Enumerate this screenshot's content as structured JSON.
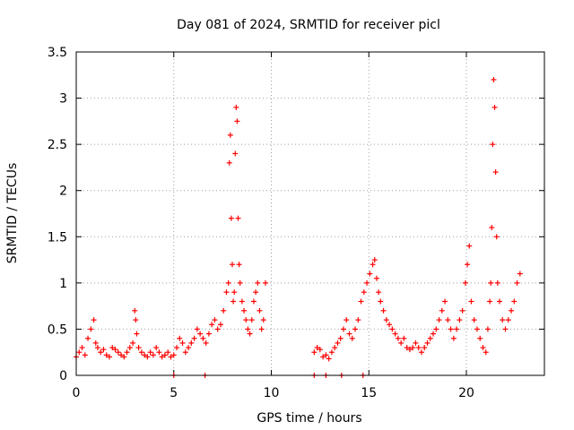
{
  "chart_data": {
    "type": "scatter",
    "title": "Day 081 of 2024, SRMTID for receiver picl",
    "xlabel": "GPS time / hours",
    "ylabel": "SRMTID / TECUs",
    "xlim": [
      0,
      24
    ],
    "ylim": [
      0,
      3.5
    ],
    "x_ticks": [
      0,
      5,
      10,
      15,
      20
    ],
    "x_tick_labels": [
      "0",
      "5",
      "10",
      "15",
      "20"
    ],
    "y_ticks": [
      0,
      0.5,
      1,
      1.5,
      2,
      2.5,
      3,
      3.5
    ],
    "y_tick_labels": [
      "0",
      "0.5",
      "1",
      "1.5",
      "2",
      "2.5",
      "3",
      "3.5"
    ],
    "grid": true,
    "legend": "none",
    "marker": "+",
    "color": "#ff0000",
    "series": [
      {
        "name": "SRMTID",
        "x": [
          0.0,
          0.15,
          0.3,
          0.45,
          0.6,
          0.75,
          0.9,
          1.0,
          1.1,
          1.25,
          1.4,
          1.55,
          1.7,
          1.85,
          2.0,
          2.15,
          2.3,
          2.45,
          2.6,
          2.75,
          2.9,
          3.0,
          3.05,
          3.1,
          3.2,
          3.35,
          3.5,
          3.65,
          3.8,
          3.95,
          4.1,
          4.25,
          4.4,
          4.55,
          4.7,
          4.85,
          5.0,
          5.15,
          5.3,
          5.45,
          5.6,
          5.75,
          5.9,
          6.05,
          6.2,
          6.35,
          6.5,
          6.65,
          6.8,
          6.95,
          7.1,
          7.25,
          7.4,
          7.55,
          7.7,
          7.8,
          7.85,
          7.9,
          7.95,
          8.0,
          8.05,
          8.1,
          8.15,
          8.2,
          8.25,
          8.3,
          8.35,
          8.4,
          8.5,
          8.6,
          8.7,
          8.8,
          8.9,
          9.0,
          9.1,
          9.2,
          9.3,
          9.4,
          9.5,
          9.6,
          9.7,
          12.2,
          12.35,
          12.5,
          12.65,
          12.8,
          12.95,
          13.1,
          13.25,
          13.4,
          13.55,
          13.7,
          13.85,
          14.0,
          14.15,
          14.3,
          14.45,
          14.6,
          14.75,
          14.9,
          15.05,
          15.2,
          15.3,
          15.4,
          15.5,
          15.6,
          15.75,
          15.9,
          16.05,
          16.2,
          16.35,
          16.5,
          16.65,
          16.8,
          16.95,
          17.1,
          17.25,
          17.4,
          17.55,
          17.7,
          17.85,
          18.0,
          18.15,
          18.3,
          18.45,
          18.6,
          18.75,
          18.9,
          19.05,
          19.2,
          19.35,
          19.5,
          19.65,
          19.8,
          19.95,
          20.05,
          20.15,
          20.25,
          20.4,
          20.55,
          20.7,
          20.85,
          21.0,
          21.1,
          21.2,
          21.25,
          21.3,
          21.35,
          21.4,
          21.45,
          21.5,
          21.55,
          21.6,
          21.7,
          21.85,
          22.0,
          22.15,
          22.3,
          22.45,
          22.6,
          22.75,
          5.0,
          6.6,
          12.2,
          12.8,
          13.6,
          14.7
        ],
        "y": [
          0.2,
          0.25,
          0.3,
          0.22,
          0.4,
          0.5,
          0.6,
          0.35,
          0.3,
          0.25,
          0.28,
          0.22,
          0.2,
          0.3,
          0.28,
          0.25,
          0.22,
          0.2,
          0.25,
          0.3,
          0.35,
          0.7,
          0.6,
          0.45,
          0.3,
          0.25,
          0.22,
          0.2,
          0.25,
          0.22,
          0.3,
          0.25,
          0.2,
          0.22,
          0.25,
          0.2,
          0.22,
          0.3,
          0.4,
          0.35,
          0.25,
          0.3,
          0.35,
          0.4,
          0.5,
          0.45,
          0.4,
          0.35,
          0.45,
          0.55,
          0.6,
          0.5,
          0.55,
          0.7,
          0.9,
          1.0,
          2.3,
          2.6,
          1.7,
          1.2,
          0.8,
          0.9,
          2.4,
          2.9,
          2.75,
          1.7,
          1.2,
          1.0,
          0.8,
          0.7,
          0.6,
          0.5,
          0.45,
          0.6,
          0.8,
          0.9,
          1.0,
          0.7,
          0.5,
          0.6,
          1.0,
          0.25,
          0.3,
          0.28,
          0.2,
          0.22,
          0.18,
          0.25,
          0.3,
          0.35,
          0.4,
          0.5,
          0.6,
          0.45,
          0.4,
          0.5,
          0.6,
          0.8,
          0.9,
          1.0,
          1.1,
          1.2,
          1.25,
          1.05,
          0.9,
          0.8,
          0.7,
          0.6,
          0.55,
          0.5,
          0.45,
          0.4,
          0.35,
          0.4,
          0.3,
          0.28,
          0.3,
          0.35,
          0.3,
          0.25,
          0.3,
          0.35,
          0.4,
          0.45,
          0.5,
          0.6,
          0.7,
          0.8,
          0.6,
          0.5,
          0.4,
          0.5,
          0.6,
          0.7,
          1.0,
          1.2,
          1.4,
          0.8,
          0.6,
          0.5,
          0.4,
          0.3,
          0.25,
          0.5,
          0.8,
          1.0,
          1.6,
          2.5,
          3.2,
          2.9,
          2.2,
          1.5,
          1.0,
          0.8,
          0.6,
          0.5,
          0.6,
          0.7,
          0.8,
          1.0,
          1.1,
          0.0,
          0.0,
          0.0,
          0.0,
          0.0,
          0.0
        ]
      }
    ]
  }
}
